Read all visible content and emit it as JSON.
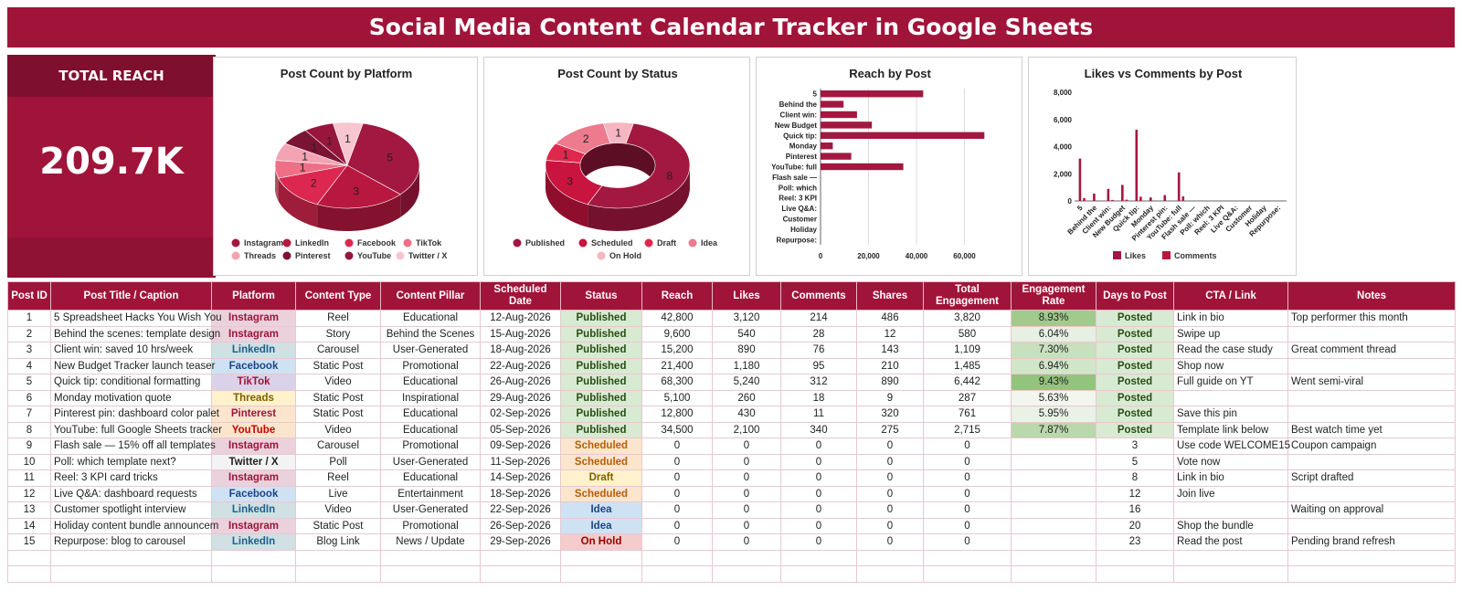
{
  "title": "Social Media Content Calendar Tracker in Google Sheets",
  "kpi": {
    "label": "TOTAL REACH",
    "value": "209.7K"
  },
  "colors": {
    "accent": "#a0143a",
    "dark": "#7e0f2e"
  },
  "charts": {
    "platform_pie": {
      "type": "pie",
      "title": "Post Count by Platform",
      "slices": [
        {
          "name": "Instagram",
          "value": 5,
          "color": "#a21840"
        },
        {
          "name": "LinkedIn",
          "value": 3,
          "color": "#b8173f"
        },
        {
          "name": "Facebook",
          "value": 2,
          "color": "#dc2850"
        },
        {
          "name": "TikTok",
          "value": 1,
          "color": "#ef6f87"
        },
        {
          "name": "Threads",
          "value": 1,
          "color": "#f4a3b2"
        },
        {
          "name": "Pinterest",
          "value": 1,
          "color": "#7a1334"
        },
        {
          "name": "YouTube",
          "value": 1,
          "color": "#98163c"
        },
        {
          "name": "Twitter / X",
          "value": 1,
          "color": "#f7c6cf"
        }
      ]
    },
    "status_donut": {
      "type": "pie",
      "title": "Post Count by Status",
      "slices": [
        {
          "name": "Published",
          "value": 8,
          "color": "#a21840"
        },
        {
          "name": "Scheduled",
          "value": 3,
          "color": "#c8143f"
        },
        {
          "name": "Draft",
          "value": 1,
          "color": "#e0284d"
        },
        {
          "name": "Idea",
          "value": 2,
          "color": "#ee7a8e"
        },
        {
          "name": "On Hold",
          "value": 1,
          "color": "#f6b6c1"
        }
      ]
    },
    "reach_bar": {
      "type": "bar",
      "title": "Reach by Post",
      "categories": [
        "5",
        "Behind the",
        "Client win:",
        "New Budget",
        "Quick tip:",
        "Monday",
        "Pinterest",
        "YouTube: full",
        "Flash sale —",
        "Poll: which",
        "Reel: 3 KPI",
        "Live Q&A:",
        "Customer",
        "Holiday",
        "Repurpose:"
      ],
      "values": [
        42800,
        9600,
        15200,
        21400,
        68300,
        5100,
        12800,
        34500,
        0,
        0,
        0,
        0,
        0,
        0,
        0
      ],
      "xticks": [
        "0",
        "20,000",
        "40,000",
        "60,000"
      ],
      "xlim": [
        0,
        80000
      ],
      "color": "#a21840"
    },
    "likes_comments": {
      "type": "bar",
      "title": "Likes vs Comments by Post",
      "categories": [
        "5",
        "Behind the",
        "Client win:",
        "New Budget",
        "Quick tip:",
        "Monday",
        "Pinterest pin:",
        "YouTube: full",
        "Flash sale —",
        "Poll: which",
        "Reel: 3 KPI",
        "Live Q&A:",
        "Customer",
        "Holiday",
        "Repurpose:"
      ],
      "series": [
        {
          "name": "Likes",
          "values": [
            3120,
            540,
            890,
            1180,
            5240,
            260,
            430,
            2100,
            0,
            0,
            0,
            0,
            0,
            0,
            0
          ],
          "color": "#a21840"
        },
        {
          "name": "Comments",
          "values": [
            214,
            28,
            76,
            95,
            312,
            18,
            11,
            340,
            0,
            0,
            0,
            0,
            0,
            0,
            0
          ],
          "color": "#b8173f"
        }
      ],
      "yticks": [
        "0",
        "2,000",
        "4,000",
        "6,000",
        "8,000"
      ],
      "ylim": [
        0,
        8000
      ]
    }
  },
  "table": {
    "headers": [
      "Post ID",
      "Post Title / Caption",
      "Platform",
      "Content Type",
      "Content Pillar",
      "Scheduled Date",
      "Status",
      "Reach",
      "Likes",
      "Comments",
      "Shares",
      "Total Engagement",
      "Engagement Rate",
      "Days to Post",
      "CTA / Link",
      "Notes"
    ],
    "rows": [
      [
        "1",
        "5 Spreadsheet Hacks You Wish You",
        "Instagram",
        "Reel",
        "Educational",
        "12-Aug-2026",
        "Published",
        "42,800",
        "3,120",
        "214",
        "486",
        "3,820",
        "8.93%",
        "Posted",
        "Link in bio",
        "Top performer this month"
      ],
      [
        "2",
        "Behind the scenes: template design",
        "Instagram",
        "Story",
        "Behind the Scenes",
        "15-Aug-2026",
        "Published",
        "9,600",
        "540",
        "28",
        "12",
        "580",
        "6.04%",
        "Posted",
        "Swipe up",
        ""
      ],
      [
        "3",
        "Client win: saved 10 hrs/week",
        "LinkedIn",
        "Carousel",
        "User-Generated",
        "18-Aug-2026",
        "Published",
        "15,200",
        "890",
        "76",
        "143",
        "1,109",
        "7.30%",
        "Posted",
        "Read the case study",
        "Great comment thread"
      ],
      [
        "4",
        "New Budget Tracker launch teaser",
        "Facebook",
        "Static Post",
        "Promotional",
        "22-Aug-2026",
        "Published",
        "21,400",
        "1,180",
        "95",
        "210",
        "1,485",
        "6.94%",
        "Posted",
        "Shop now",
        ""
      ],
      [
        "5",
        "Quick tip: conditional formatting",
        "TikTok",
        "Video",
        "Educational",
        "26-Aug-2026",
        "Published",
        "68,300",
        "5,240",
        "312",
        "890",
        "6,442",
        "9.43%",
        "Posted",
        "Full guide on YT",
        "Went semi-viral"
      ],
      [
        "6",
        "Monday motivation quote",
        "Threads",
        "Static Post",
        "Inspirational",
        "29-Aug-2026",
        "Published",
        "5,100",
        "260",
        "18",
        "9",
        "287",
        "5.63%",
        "Posted",
        "",
        ""
      ],
      [
        "7",
        "Pinterest pin: dashboard color palet",
        "Pinterest",
        "Static Post",
        "Educational",
        "02-Sep-2026",
        "Published",
        "12,800",
        "430",
        "11",
        "320",
        "761",
        "5.95%",
        "Posted",
        "Save this pin",
        ""
      ],
      [
        "8",
        "YouTube: full Google Sheets tracker",
        "YouTube",
        "Video",
        "Educational",
        "05-Sep-2026",
        "Published",
        "34,500",
        "2,100",
        "340",
        "275",
        "2,715",
        "7.87%",
        "Posted",
        "Template link below",
        "Best watch time yet"
      ],
      [
        "9",
        "Flash sale — 15% off all templates",
        "Instagram",
        "Carousel",
        "Promotional",
        "09-Sep-2026",
        "Scheduled",
        "0",
        "0",
        "0",
        "0",
        "0",
        "",
        "3",
        "Use code WELCOME15",
        "Coupon campaign"
      ],
      [
        "10",
        "Poll: which template next?",
        "Twitter / X",
        "Poll",
        "User-Generated",
        "11-Sep-2026",
        "Scheduled",
        "0",
        "0",
        "0",
        "0",
        "0",
        "",
        "5",
        "Vote now",
        ""
      ],
      [
        "11",
        "Reel: 3 KPI card tricks",
        "Instagram",
        "Reel",
        "Educational",
        "14-Sep-2026",
        "Draft",
        "0",
        "0",
        "0",
        "0",
        "0",
        "",
        "8",
        "Link in bio",
        "Script drafted"
      ],
      [
        "12",
        "Live Q&A: dashboard requests",
        "Facebook",
        "Live",
        "Entertainment",
        "18-Sep-2026",
        "Scheduled",
        "0",
        "0",
        "0",
        "0",
        "0",
        "",
        "12",
        "Join live",
        ""
      ],
      [
        "13",
        "Customer spotlight interview",
        "LinkedIn",
        "Video",
        "User-Generated",
        "22-Sep-2026",
        "Idea",
        "0",
        "0",
        "0",
        "0",
        "0",
        "",
        "16",
        "",
        "Waiting on approval"
      ],
      [
        "14",
        "Holiday content bundle announcem",
        "Instagram",
        "Static Post",
        "Promotional",
        "26-Sep-2026",
        "Idea",
        "0",
        "0",
        "0",
        "0",
        "0",
        "",
        "20",
        "Shop the bundle",
        ""
      ],
      [
        "15",
        "Repurpose: blog to carousel",
        "LinkedIn",
        "Blog Link",
        "News / Update",
        "29-Sep-2026",
        "On Hold",
        "0",
        "0",
        "0",
        "0",
        "0",
        "",
        "23",
        "Read the post",
        "Pending brand refresh"
      ]
    ],
    "platform_styles": {
      "Instagram": {
        "bg": "#ead1dc",
        "fg": "#a0143a"
      },
      "LinkedIn": {
        "bg": "#d0e0e3",
        "fg": "#1f5f8b"
      },
      "Facebook": {
        "bg": "#cfe2f3",
        "fg": "#1c4587"
      },
      "TikTok": {
        "bg": "#d9d2e9",
        "fg": "#a0143a"
      },
      "Threads": {
        "bg": "#fff2cc",
        "fg": "#7f6000"
      },
      "Pinterest": {
        "bg": "#fce5cd",
        "fg": "#a0143a"
      },
      "YouTube": {
        "bg": "#fce5cd",
        "fg": "#cc0000"
      },
      "Twitter / X": {
        "bg": "#f3f3f3",
        "fg": "#222222"
      }
    },
    "status_styles": {
      "Published": {
        "bg": "#d9ead3",
        "fg": "#274e13"
      },
      "Scheduled": {
        "bg": "#fce5cd",
        "fg": "#b45f06"
      },
      "Draft": {
        "bg": "#fff2cc",
        "fg": "#7f6000"
      },
      "Idea": {
        "bg": "#cfe2f3",
        "fg": "#1c4587"
      },
      "On Hold": {
        "bg": "#f4cccc",
        "fg": "#990000"
      }
    }
  }
}
